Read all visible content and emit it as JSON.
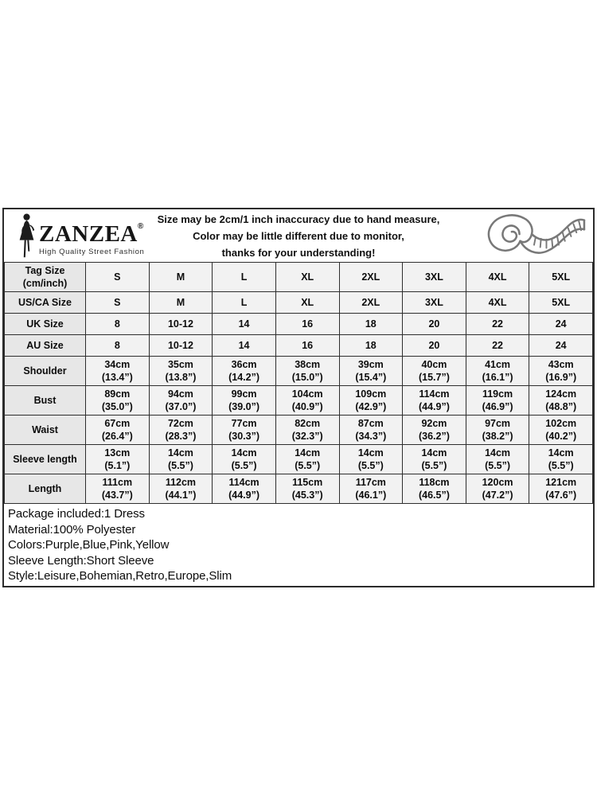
{
  "header": {
    "brand": {
      "name": "ZANZEA",
      "registered_mark": "®",
      "tagline": "High Quality Street Fashion"
    },
    "notice_lines": [
      "Size may be 2cm/1 inch inaccuracy due to hand measure,",
      "Color may be little different due to monitor,",
      "thanks for your understanding!"
    ]
  },
  "table": {
    "rows": [
      {
        "label": [
          "Tag Size",
          "(cm/inch)"
        ],
        "cells": [
          [
            "S"
          ],
          [
            "M"
          ],
          [
            "L"
          ],
          [
            "XL"
          ],
          [
            "2XL"
          ],
          [
            "3XL"
          ],
          [
            "4XL"
          ],
          [
            "5XL"
          ]
        ]
      },
      {
        "label": [
          "US/CA Size"
        ],
        "cells": [
          [
            "S"
          ],
          [
            "M"
          ],
          [
            "L"
          ],
          [
            "XL"
          ],
          [
            "2XL"
          ],
          [
            "3XL"
          ],
          [
            "4XL"
          ],
          [
            "5XL"
          ]
        ]
      },
      {
        "label": [
          "UK Size"
        ],
        "cells": [
          [
            "8"
          ],
          [
            "10-12"
          ],
          [
            "14"
          ],
          [
            "16"
          ],
          [
            "18"
          ],
          [
            "20"
          ],
          [
            "22"
          ],
          [
            "24"
          ]
        ]
      },
      {
        "label": [
          "AU Size"
        ],
        "cells": [
          [
            "8"
          ],
          [
            "10-12"
          ],
          [
            "14"
          ],
          [
            "16"
          ],
          [
            "18"
          ],
          [
            "20"
          ],
          [
            "22"
          ],
          [
            "24"
          ]
        ]
      },
      {
        "label": [
          "Shoulder"
        ],
        "cells": [
          [
            "34cm",
            "(13.4”)"
          ],
          [
            "35cm",
            "(13.8”)"
          ],
          [
            "36cm",
            "(14.2”)"
          ],
          [
            "38cm",
            "(15.0”)"
          ],
          [
            "39cm",
            "(15.4”)"
          ],
          [
            "40cm",
            "(15.7”)"
          ],
          [
            "41cm",
            "(16.1”)"
          ],
          [
            "43cm",
            "(16.9”)"
          ]
        ]
      },
      {
        "label": [
          "Bust"
        ],
        "cells": [
          [
            "89cm",
            "(35.0”)"
          ],
          [
            "94cm",
            "(37.0”)"
          ],
          [
            "99cm",
            "(39.0”)"
          ],
          [
            "104cm",
            "(40.9”)"
          ],
          [
            "109cm",
            "(42.9”)"
          ],
          [
            "114cm",
            "(44.9”)"
          ],
          [
            "119cm",
            "(46.9”)"
          ],
          [
            "124cm",
            "(48.8”)"
          ]
        ]
      },
      {
        "label": [
          "Waist"
        ],
        "cells": [
          [
            "67cm",
            "(26.4”)"
          ],
          [
            "72cm",
            "(28.3”)"
          ],
          [
            "77cm",
            "(30.3”)"
          ],
          [
            "82cm",
            "(32.3”)"
          ],
          [
            "87cm",
            "(34.3”)"
          ],
          [
            "92cm",
            "(36.2”)"
          ],
          [
            "97cm",
            "(38.2”)"
          ],
          [
            "102cm",
            "(40.2”)"
          ]
        ]
      },
      {
        "label": [
          "Sleeve length"
        ],
        "cells": [
          [
            "13cm",
            "(5.1”)"
          ],
          [
            "14cm",
            "(5.5”)"
          ],
          [
            "14cm",
            "(5.5”)"
          ],
          [
            "14cm",
            "(5.5”)"
          ],
          [
            "14cm",
            "(5.5”)"
          ],
          [
            "14cm",
            "(5.5”)"
          ],
          [
            "14cm",
            "(5.5”)"
          ],
          [
            "14cm",
            "(5.5”)"
          ]
        ]
      },
      {
        "label": [
          "Length"
        ],
        "cells": [
          [
            "111cm",
            "(43.7”)"
          ],
          [
            "112cm",
            "(44.1”)"
          ],
          [
            "114cm",
            "(44.9”)"
          ],
          [
            "115cm",
            "(45.3”)"
          ],
          [
            "117cm",
            "(46.1”)"
          ],
          [
            "118cm",
            "(46.5”)"
          ],
          [
            "120cm",
            "(47.2”)"
          ],
          [
            "121cm",
            "(47.6”)"
          ]
        ]
      }
    ]
  },
  "details": {
    "lines": [
      "Package included:1 Dress",
      "Material:100% Polyester",
      "Colors:Purple,Blue,Pink,Yellow",
      "Sleeve Length:Short Sleeve",
      "Style:Leisure,Bohemian,Retro,Europe,Slim"
    ]
  },
  "colors": {
    "border": "#2b2b2b",
    "label_cell_bg": "#e7e7e7",
    "data_cell_bg": "#f2f2f2",
    "text": "#0c0c0c",
    "tape_icon_stroke": "#787878",
    "silhouette_fill": "#1c1c1c"
  }
}
